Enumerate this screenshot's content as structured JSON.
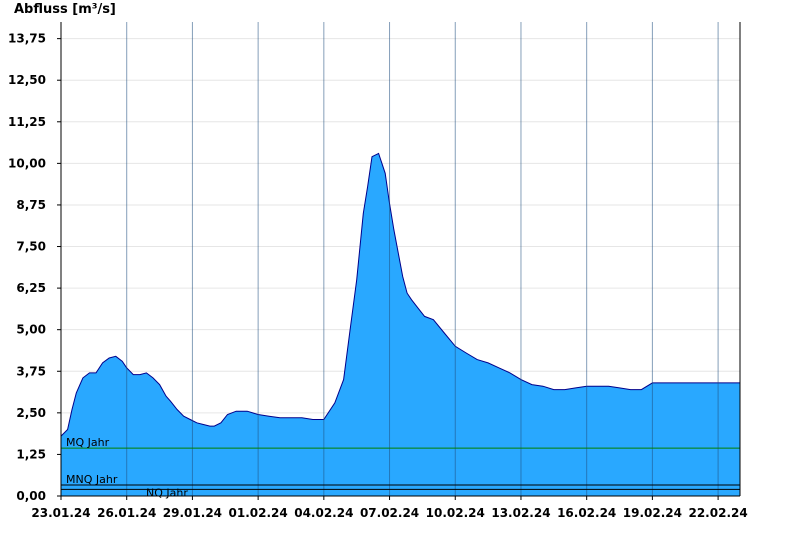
{
  "chart_data": {
    "type": "area",
    "ylabel": "Abfluss [m³/s]",
    "ylim": [
      0,
      14.25
    ],
    "grid": true,
    "y_ticks": [
      "0,00",
      "1,25",
      "2,50",
      "3,75",
      "5,00",
      "6,25",
      "7,50",
      "8,75",
      "10,00",
      "11,25",
      "12,50",
      "13,75"
    ],
    "x_ticks": [
      "23.01.24",
      "26.01.24",
      "29.01.24",
      "01.02.24",
      "04.02.24",
      "07.02.24",
      "10.02.24",
      "13.02.24",
      "16.02.24",
      "19.02.24",
      "22.02.24"
    ],
    "series": [
      {
        "fill_color": "#29A8FF",
        "line_color": "#00008B",
        "x_days": [
          0.0,
          0.3,
          0.5,
          0.7,
          1.0,
          1.3,
          1.6,
          1.9,
          2.2,
          2.5,
          2.8,
          3.0,
          3.3,
          3.6,
          3.9,
          4.2,
          4.5,
          4.8,
          5.0,
          5.3,
          5.6,
          5.9,
          6.2,
          6.5,
          6.8,
          7.0,
          7.3,
          7.6,
          8.0,
          8.5,
          9.0,
          9.5,
          10.0,
          10.5,
          11.0,
          11.5,
          12.0,
          12.5,
          12.9,
          13.2,
          13.5,
          13.8,
          14.0,
          14.2,
          14.5,
          14.8,
          15.0,
          15.2,
          15.4,
          15.6,
          15.8,
          16.0,
          16.3,
          16.6,
          17.0,
          17.5,
          18.0,
          18.5,
          19.0,
          19.5,
          20.0,
          20.5,
          21.0,
          21.5,
          22.0,
          22.5,
          23.0,
          23.5,
          24.0,
          24.5,
          25.0,
          25.5,
          26.0,
          26.5,
          27.0,
          27.5,
          28.0,
          28.5,
          29.0,
          29.5,
          30.0,
          30.5,
          31.0
        ],
        "values": [
          1.8,
          2.0,
          2.6,
          3.1,
          3.55,
          3.7,
          3.7,
          4.0,
          4.15,
          4.2,
          4.05,
          3.85,
          3.65,
          3.65,
          3.7,
          3.55,
          3.35,
          3.0,
          2.85,
          2.6,
          2.4,
          2.3,
          2.2,
          2.15,
          2.1,
          2.1,
          2.2,
          2.45,
          2.55,
          2.55,
          2.45,
          2.4,
          2.35,
          2.35,
          2.35,
          2.3,
          2.3,
          2.8,
          3.5,
          5.0,
          6.5,
          8.5,
          9.3,
          10.2,
          10.3,
          9.7,
          8.8,
          8.0,
          7.3,
          6.6,
          6.1,
          5.9,
          5.65,
          5.4,
          5.3,
          4.9,
          4.5,
          4.3,
          4.1,
          4.0,
          3.85,
          3.7,
          3.5,
          3.35,
          3.3,
          3.2,
          3.2,
          3.25,
          3.3,
          3.3,
          3.3,
          3.25,
          3.2,
          3.2,
          3.4,
          3.4,
          3.4,
          3.4,
          3.4,
          3.4,
          3.4,
          3.4,
          3.4
        ]
      }
    ],
    "reference_lines": [
      {
        "label": "MQ Jahr",
        "value": 1.44,
        "color": "#008000"
      },
      {
        "label": "MNQ Jahr",
        "value": 0.33,
        "color": "#000000"
      },
      {
        "label": "NQ Jahr",
        "value": 0.2,
        "color": "#000000"
      }
    ]
  }
}
